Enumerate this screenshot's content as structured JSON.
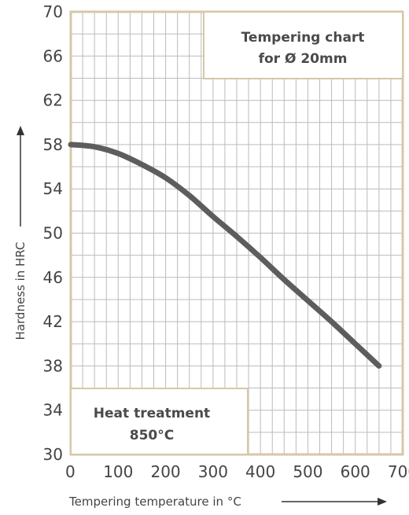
{
  "chart_data": {
    "type": "line",
    "xlabel": "Tempering temperature in °C",
    "ylabel": "Hardness in HRC",
    "xlim": [
      0,
      700
    ],
    "ylim": [
      30,
      70
    ],
    "x_ticks": [
      0,
      100,
      200,
      300,
      400,
      500,
      600,
      700
    ],
    "y_ticks": [
      30,
      34,
      38,
      42,
      46,
      50,
      54,
      58,
      62,
      66,
      70
    ],
    "grid": true,
    "series": [
      {
        "x": [
          0,
          50,
          100,
          150,
          200,
          250,
          300,
          350,
          400,
          450,
          500,
          550,
          600,
          650
        ],
        "y": [
          58,
          57.8,
          57.2,
          56.2,
          55,
          53.4,
          51.5,
          49.7,
          47.8,
          45.8,
          43.9,
          42,
          40,
          38
        ]
      }
    ],
    "annotations": {
      "top_box": [
        "Tempering chart",
        "for Ø 20mm"
      ],
      "bottom_box": [
        "Heat treatment",
        "850°C"
      ]
    },
    "colors": {
      "frame": "#d7c7a6",
      "grid": "#bbbbbb",
      "line": "#5d5d5d",
      "text": "#444444"
    }
  }
}
